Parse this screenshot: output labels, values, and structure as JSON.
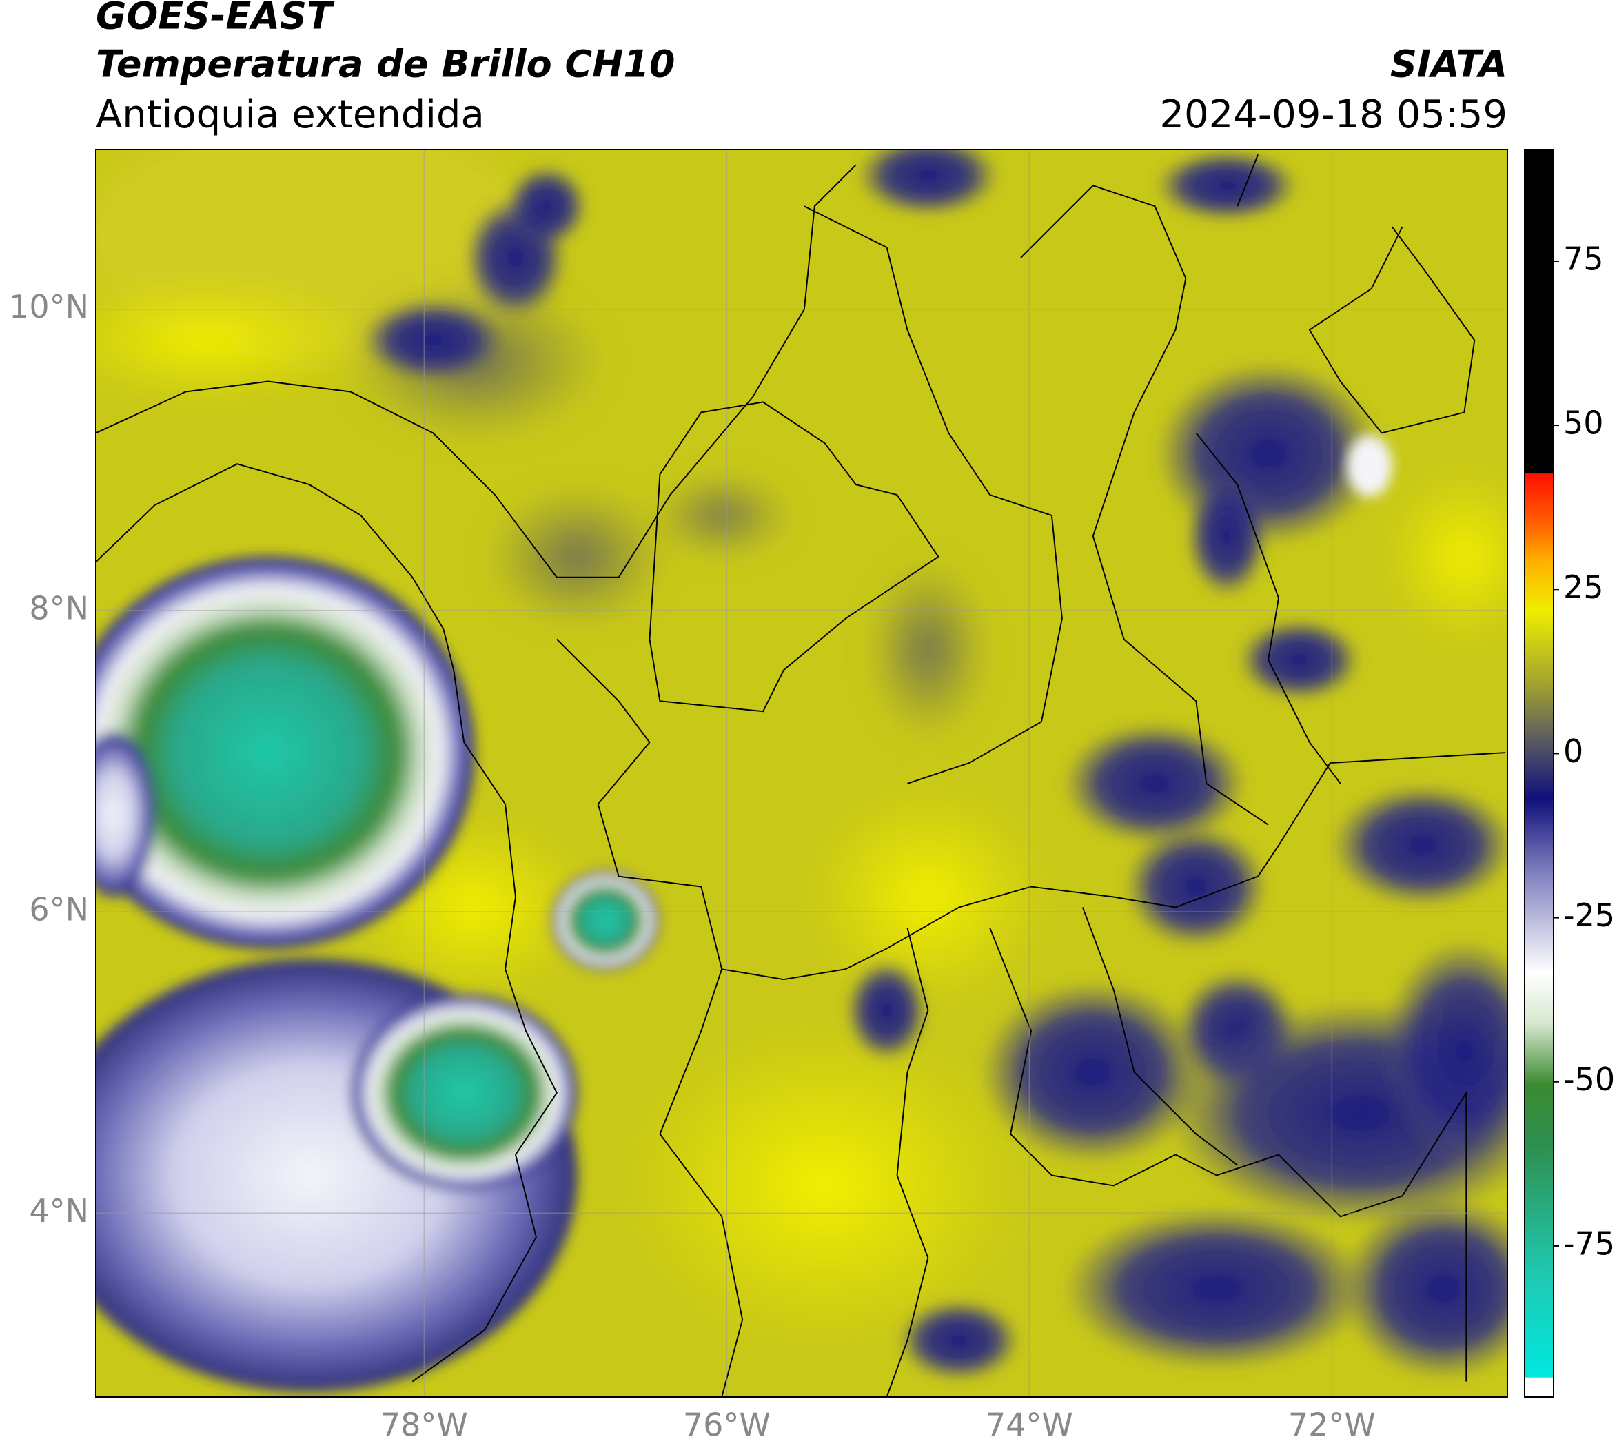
{
  "header": {
    "satellite": "GOES-EAST",
    "product": "Temperatura de Brillo CH10",
    "region": "Antioquia extendida",
    "source": "SIATA",
    "datetime": "2024-09-18 05:59"
  },
  "map": {
    "lonlim": [
      -80.17,
      -70.84
    ],
    "latlim": [
      2.78,
      11.06
    ],
    "xticks": [
      {
        "value": -78,
        "label": "78°W"
      },
      {
        "value": -76,
        "label": "76°W"
      },
      {
        "value": -74,
        "label": "74°W"
      },
      {
        "value": -72,
        "label": "72°W"
      }
    ],
    "yticks": [
      {
        "value": 10,
        "label": "10°N"
      },
      {
        "value": 8,
        "label": "8°N"
      },
      {
        "value": 6,
        "label": "6°N"
      },
      {
        "value": 4,
        "label": "4°N"
      }
    ]
  },
  "colorbar": {
    "range": [
      -98,
      92
    ],
    "ticks": [
      75,
      50,
      25,
      0,
      -25,
      -50,
      -75
    ]
  }
}
